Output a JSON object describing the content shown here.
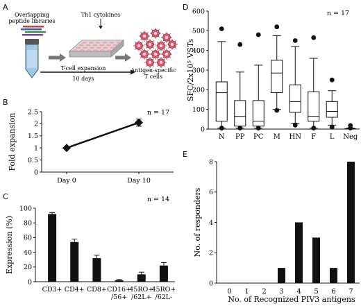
{
  "panels": {
    "A": {
      "letter": "A",
      "labels": {
        "libraries": [
          "Overlapping",
          "peptide libraries"
        ],
        "cytokines": "Th1 cytokines",
        "expansion": "T-cell expansion",
        "days": "10 days",
        "result": [
          "Antigen-specific",
          "T cells"
        ]
      },
      "colors": {
        "tube": "#9fc7e6",
        "plate": "#f2a4b0",
        "cell": "#e8516a",
        "arrow": "#777777"
      }
    },
    "B": {
      "letter": "B",
      "n_label": "n = 17"
    },
    "C": {
      "letter": "C",
      "n_label": "n = 14"
    },
    "D": {
      "letter": "D",
      "n_label": "n = 17"
    },
    "E": {
      "letter": "E"
    }
  },
  "chart_data": [
    {
      "id": "B",
      "type": "line",
      "ylabel": "Fold expansion",
      "categories": [
        "Day 0",
        "Day 10"
      ],
      "values": [
        1.0,
        2.05
      ],
      "errors": [
        0,
        0.15
      ],
      "ylim": [
        0,
        2.5
      ],
      "yticks": [
        "0",
        "0.5",
        "1",
        "1.5",
        "2",
        "2.5"
      ]
    },
    {
      "id": "C",
      "type": "bar",
      "ylabel": "Expression (%)",
      "categories": [
        [
          "CD3+"
        ],
        [
          "CD4+"
        ],
        [
          "CD8+"
        ],
        [
          "CD16+",
          "/56+"
        ],
        [
          "45RO+",
          "/62L+"
        ],
        [
          "45RO+",
          "/62L-"
        ]
      ],
      "values": [
        92,
        54,
        32,
        2,
        10,
        22
      ],
      "errors": [
        2,
        4,
        4,
        1,
        3,
        4
      ],
      "ylim": [
        0,
        100
      ],
      "yticks": [
        "0",
        "20",
        "40",
        "60",
        "80",
        "100"
      ]
    },
    {
      "id": "D",
      "type": "box",
      "ylabel": "SFC/2x10⁵ VSTs",
      "categories": [
        "N",
        "PP",
        "PC",
        "M",
        "HN",
        "F",
        "L",
        "Neg"
      ],
      "boxes": [
        {
          "wlo": 5,
          "q1": 40,
          "med": 185,
          "q3": 240,
          "whi": 445,
          "outliers": [
            510,
            5
          ]
        },
        {
          "wlo": 5,
          "q1": 15,
          "med": 65,
          "q3": 145,
          "whi": 290,
          "outliers": [
            430,
            5
          ]
        },
        {
          "wlo": 5,
          "q1": 15,
          "med": 40,
          "q3": 145,
          "whi": 325,
          "outliers": [
            480,
            5
          ]
        },
        {
          "wlo": 100,
          "q1": 185,
          "med": 285,
          "q3": 350,
          "whi": 475,
          "outliers": [
            520,
            95
          ]
        },
        {
          "wlo": 30,
          "q1": 85,
          "med": 140,
          "q3": 225,
          "whi": 420,
          "outliers": [
            450,
            20
          ]
        },
        {
          "wlo": 5,
          "q1": 40,
          "med": 65,
          "q3": 190,
          "whi": 360,
          "outliers": [
            465,
            5
          ]
        },
        {
          "wlo": 20,
          "q1": 60,
          "med": 90,
          "q3": 140,
          "whi": 195,
          "outliers": [
            250,
            10
          ]
        },
        {
          "wlo": 0,
          "q1": 0,
          "med": 0,
          "q3": 2,
          "whi": 5,
          "outliers": [
            18,
            5
          ]
        }
      ],
      "ylim": [
        0,
        600
      ],
      "yticks": [
        "0",
        "100",
        "200",
        "300",
        "400",
        "500",
        "600"
      ]
    },
    {
      "id": "E",
      "type": "bar",
      "xlabel": "No. of Recognized PIV3 antigens",
      "ylabel": "No. of responders",
      "categories": [
        "0",
        "1",
        "2",
        "3",
        "4",
        "5",
        "6",
        "7"
      ],
      "values": [
        0,
        0,
        0,
        1,
        4,
        3,
        1,
        8
      ],
      "ylim": [
        0,
        8
      ],
      "yticks": [
        "0",
        "2",
        "4",
        "6",
        "8"
      ]
    }
  ]
}
